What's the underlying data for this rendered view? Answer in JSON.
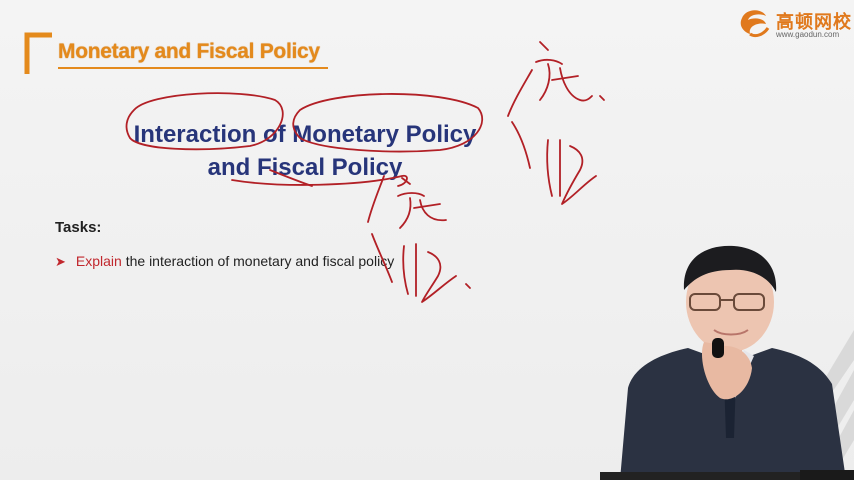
{
  "logo": {
    "brand_cn": "高顿网校",
    "url": "www.gaodun.com",
    "icon": "gaodun-logo-icon",
    "color": "#e0791d"
  },
  "header": {
    "section_title": "Monetary and Fiscal Policy",
    "accent_color": "#e48a1c"
  },
  "slide": {
    "title_line1": "Interaction of Monetary Policy",
    "title_line2": "and Fiscal Policy",
    "title_color": "#27357a",
    "tasks_label": "Tasks:",
    "task": {
      "verb": "Explain",
      "rest": " the interaction of monetary and fiscal policy",
      "verb_color": "#c1272d"
    }
  },
  "annotations": {
    "ink_color": "#b22026"
  }
}
